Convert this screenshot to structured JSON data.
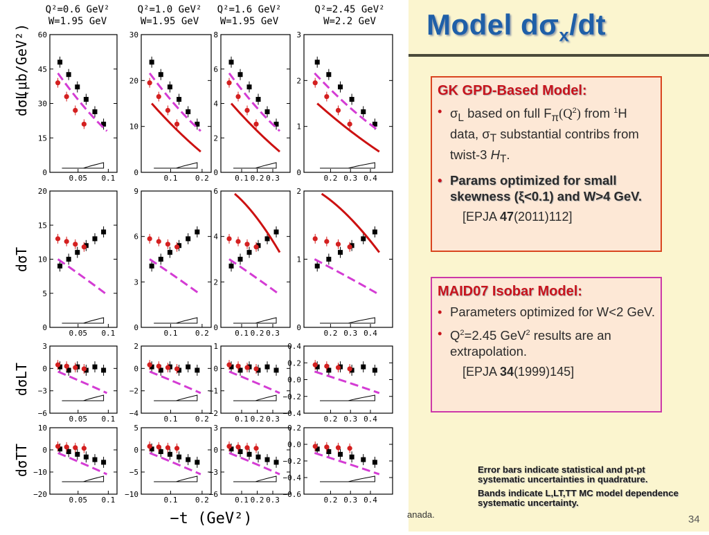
{
  "slide": {
    "title_main": "Model dσ",
    "title_sub": "x",
    "title_tail": "/dt",
    "page_number": "34",
    "footer_fragment": "anada."
  },
  "figure": {
    "column_headers": [
      {
        "q2": "Q²=0.6  GeV²",
        "w": "W=1.95  GeV"
      },
      {
        "q2": "Q²=1.0  GeV²",
        "w": "W=1.95  GeV"
      },
      {
        "q2": "Q²=1.6  GeV²",
        "w": "W=1.95  GeV"
      },
      {
        "q2": "Q²=2.45  GeV²",
        "w": "W=2.2  GeV"
      }
    ],
    "row_labels": [
      "dσL",
      "dσT",
      "dσLT",
      "dσTT"
    ],
    "y_unit_label": "(μb/GeV²)",
    "x_axis_label": "−t  (GeV²)",
    "rows": [
      {
        "yticks": [
          [
            "60",
            "45",
            "30",
            "15",
            "0"
          ],
          [
            "30",
            "20",
            "10",
            "0"
          ],
          [
            "8",
            "6",
            "4",
            "2",
            "0"
          ],
          [
            "3",
            "2",
            "1",
            "0"
          ]
        ]
      },
      {
        "yticks": [
          [
            "20",
            "15",
            "10",
            "5",
            "0"
          ],
          [
            "9",
            "6",
            "3",
            "0"
          ],
          [
            "6",
            "4",
            "2",
            "0"
          ],
          [
            "2",
            "1",
            "0"
          ]
        ]
      },
      {
        "yticks": [
          [
            "3",
            "0",
            "−3",
            "−6"
          ],
          [
            "2",
            "0",
            "−2",
            "−4"
          ],
          [
            "1",
            "0",
            "−1",
            "−2"
          ],
          [
            "0.4",
            "0.2",
            "0.0",
            "−0.2",
            "−0.4"
          ]
        ]
      },
      {
        "yticks": [
          [
            "10",
            "0",
            "−10",
            "−20"
          ],
          [
            "5",
            "0",
            "−5",
            "−10"
          ],
          [
            "3",
            "0",
            "−3",
            "−6"
          ],
          [
            "0.2",
            "0.0",
            "−0.2",
            "−0.4",
            "−0.6"
          ]
        ]
      }
    ],
    "xticks": [
      [
        "0.05",
        "0.1"
      ],
      [
        "0.1",
        "0.2"
      ],
      [
        "0.1",
        "0.2",
        "0.3"
      ],
      [
        "0.2",
        "0.3",
        "0.4"
      ]
    ],
    "colors": {
      "black_data": "#000000",
      "red_data": "#d42020",
      "magenta_curve": "#d43cd4",
      "red_curve": "#cc1111"
    }
  },
  "gk_box": {
    "heading": "GK GPD-Based Model:",
    "bullet1_pre": "σ",
    "bullet1_sub": "L",
    "bullet1_mid": " based on full F",
    "bullet1_sub2": "π",
    "bullet1_q": "(Q",
    "bullet1_sup": "2",
    "bullet1_qe": ")",
    "bullet1_post": " from ",
    "bullet1_sup2": "1",
    "bullet1_rest": "H data, σ",
    "bullet1_sub3": "T",
    "bullet1_end": " substantial contribs from twist-3 ",
    "bullet1_ht": "H",
    "bullet1_ht_sub": "T",
    "bullet1_dot": ".",
    "bullet2": "Params optimized for small skewness (ξ<0.1) and W>4 GeV.",
    "ref_pre": "[EPJA ",
    "ref_vol": "47",
    "ref_post": "(2011)112]"
  },
  "maid_box": {
    "heading": "MAID07 Isobar Model:",
    "bullet1": "Parameters optimized for W<2 GeV.",
    "bullet2_pre": "Q",
    "bullet2_sup": "2",
    "bullet2_mid": "=2.45 GeV",
    "bullet2_sup2": "2",
    "bullet2_post": " results are an extrapolation.",
    "ref_pre": "[EPJA ",
    "ref_vol": "34",
    "ref_post": "(1999)145]"
  },
  "note": {
    "line1": "Error bars indicate statistical and pt-pt systematic uncertainties in quadrature.",
    "line2": "Bands indicate L,LT,TT MC model dependence systematic uncertainty."
  }
}
